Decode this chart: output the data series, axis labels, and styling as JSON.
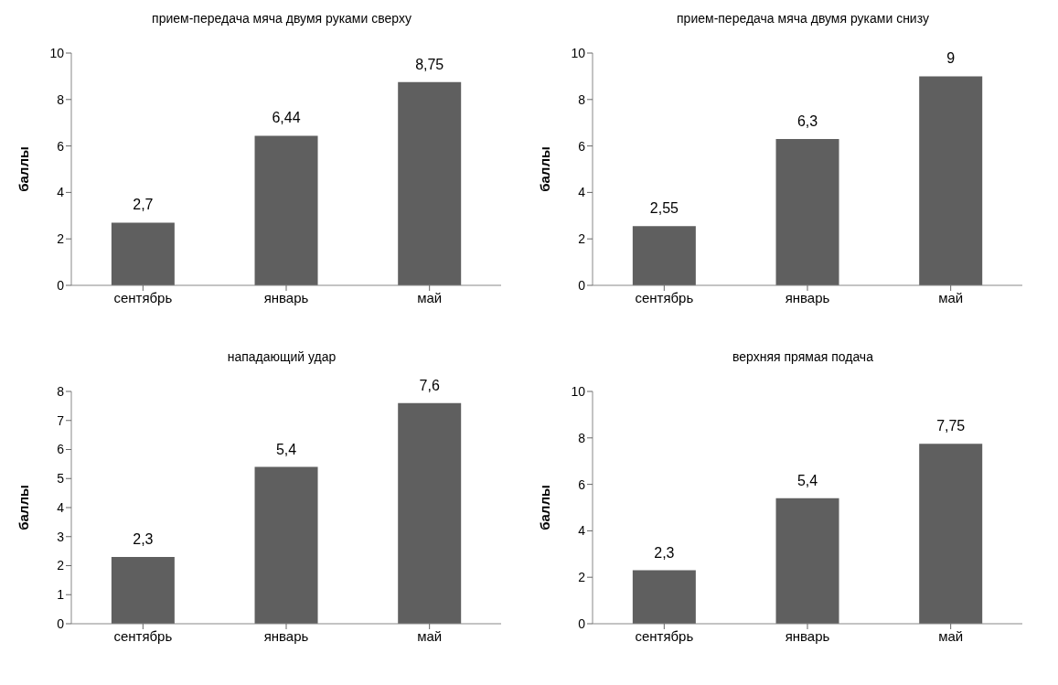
{
  "chart_data": [
    {
      "type": "bar",
      "title": "прием-передача мяча двумя руками сверху",
      "ylabel": "баллы",
      "categories": [
        "сентябрь",
        "январь",
        "май"
      ],
      "values": [
        2.7,
        6.44,
        8.75
      ],
      "value_labels": [
        "2,7",
        "6,44",
        "8,75"
      ],
      "color": "#5f5f5f",
      "ylim": [
        0,
        10
      ],
      "yticks": [
        0,
        2,
        4,
        6,
        8,
        10
      ]
    },
    {
      "type": "bar",
      "title": "прием-передача мяча двумя руками снизу",
      "ylabel": "баллы",
      "categories": [
        "сентябрь",
        "январь",
        "май"
      ],
      "values": [
        2.55,
        6.3,
        9
      ],
      "value_labels": [
        "2,55",
        "6,3",
        "9"
      ],
      "color": "#5f5f5f",
      "ylim": [
        0,
        10
      ],
      "yticks": [
        0,
        2,
        4,
        6,
        8,
        10
      ]
    },
    {
      "type": "bar",
      "title": "нападающий удар",
      "ylabel": "баллы",
      "categories": [
        "сентябрь",
        "январь",
        "май"
      ],
      "values": [
        2.3,
        5.4,
        7.6
      ],
      "value_labels": [
        "2,3",
        "5,4",
        "7,6"
      ],
      "color": "#5f5f5f",
      "ylim": [
        0,
        8
      ],
      "yticks": [
        0,
        1,
        2,
        3,
        4,
        5,
        6,
        7,
        8
      ]
    },
    {
      "type": "bar",
      "title": "верхняя прямая подача",
      "ylabel": "баллы",
      "categories": [
        "сентябрь",
        "январь",
        "май"
      ],
      "values": [
        2.3,
        5.4,
        7.75
      ],
      "value_labels": [
        "2,3",
        "5,4",
        "7,75"
      ],
      "color": "#5f5f5f",
      "ylim": [
        0,
        10
      ],
      "yticks": [
        0,
        2,
        4,
        6,
        8,
        10
      ]
    }
  ]
}
